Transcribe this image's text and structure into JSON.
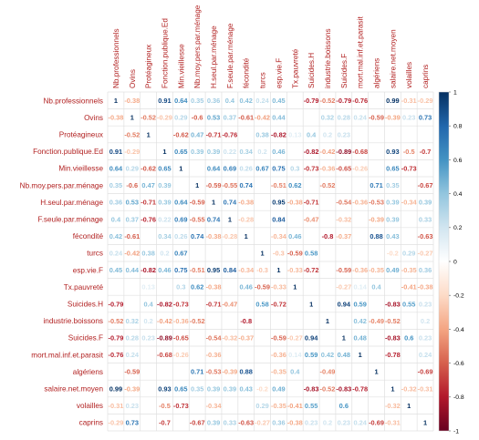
{
  "chart_data": {
    "type": "heatmap",
    "title": "",
    "variables": [
      "Nb.professionnels",
      "Ovins",
      "Protéagineux",
      "Fonction.publique.Ed",
      "Min.vieillesse",
      "Nb.moy.pers.par.ménage",
      "H.seul.par.ménage",
      "F.seule.par.ménage",
      "fécondité",
      "turcs",
      "esp.vie.F",
      "Tx.pauvreté",
      "Suicides.H",
      "industrie.boissons",
      "Suicides.F",
      "mort.mal.inf.et.parasit",
      "algériens",
      "salaire.net.moyen",
      "volailles",
      "caprins"
    ],
    "matrix": [
      [
        1,
        -0.38,
        null,
        0.91,
        0.64,
        0.35,
        0.36,
        0.4,
        0.42,
        0.24,
        0.45,
        null,
        -0.79,
        -0.52,
        -0.79,
        -0.76,
        null,
        0.99,
        -0.31,
        -0.29
      ],
      [
        -0.38,
        1,
        -0.52,
        -0.29,
        0.29,
        -0.6,
        0.53,
        0.37,
        -0.61,
        -0.42,
        0.44,
        null,
        null,
        0.32,
        0.28,
        0.24,
        -0.59,
        -0.39,
        0.23,
        0.73
      ],
      [
        null,
        -0.52,
        1,
        null,
        -0.62,
        0.47,
        -0.71,
        -0.76,
        null,
        0.38,
        -0.82,
        0.13,
        0.4,
        0.2,
        0.23,
        null,
        null,
        null,
        null,
        null
      ],
      [
        0.91,
        -0.29,
        null,
        1,
        0.65,
        0.39,
        0.39,
        0.22,
        0.34,
        0.2,
        0.46,
        null,
        -0.82,
        -0.42,
        -0.89,
        -0.68,
        null,
        0.93,
        -0.5,
        -0.7
      ],
      [
        0.64,
        0.29,
        -0.62,
        0.65,
        1,
        null,
        0.64,
        0.69,
        0.26,
        0.67,
        0.75,
        0.3,
        -0.73,
        -0.36,
        -0.65,
        -0.26,
        null,
        0.65,
        -0.73,
        null
      ],
      [
        0.35,
        -0.6,
        0.47,
        0.39,
        null,
        1,
        -0.59,
        -0.55,
        0.74,
        null,
        -0.51,
        0.62,
        null,
        -0.52,
        null,
        null,
        0.71,
        0.35,
        null,
        -0.67
      ],
      [
        0.36,
        0.53,
        -0.71,
        0.39,
        0.64,
        -0.59,
        1,
        0.74,
        -0.38,
        null,
        0.95,
        -0.38,
        -0.71,
        null,
        -0.54,
        -0.36,
        -0.53,
        0.39,
        -0.34,
        0.39
      ],
      [
        0.4,
        0.37,
        -0.76,
        0.22,
        0.69,
        -0.55,
        0.74,
        1,
        -0.28,
        null,
        0.84,
        null,
        -0.47,
        null,
        -0.32,
        null,
        -0.39,
        0.39,
        null,
        0.33
      ],
      [
        0.42,
        -0.61,
        null,
        0.34,
        0.26,
        0.74,
        -0.38,
        -0.28,
        1,
        null,
        -0.34,
        0.46,
        null,
        -0.8,
        -0.37,
        null,
        0.88,
        0.43,
        null,
        -0.63
      ],
      [
        0.24,
        -0.42,
        0.38,
        0.2,
        0.67,
        null,
        null,
        null,
        null,
        1,
        -0.3,
        -0.59,
        0.58,
        null,
        null,
        null,
        null,
        -0.2,
        0.29,
        -0.27
      ],
      [
        0.45,
        0.44,
        -0.82,
        0.46,
        0.75,
        -0.51,
        0.95,
        0.84,
        -0.34,
        -0.3,
        1,
        -0.33,
        -0.72,
        null,
        -0.59,
        -0.36,
        -0.35,
        0.49,
        -0.35,
        0.36
      ],
      [
        null,
        null,
        0.13,
        null,
        0.3,
        0.62,
        -0.38,
        null,
        0.46,
        -0.59,
        -0.33,
        1,
        null,
        null,
        -0.27,
        0.14,
        0.4,
        null,
        -0.41,
        -0.38
      ],
      [
        -0.79,
        null,
        0.4,
        -0.82,
        -0.73,
        null,
        -0.71,
        -0.47,
        null,
        0.58,
        -0.72,
        null,
        1,
        null,
        0.94,
        0.59,
        null,
        -0.83,
        0.55,
        0.23
      ],
      [
        -0.52,
        0.32,
        0.2,
        -0.42,
        -0.36,
        -0.52,
        null,
        null,
        -0.8,
        null,
        null,
        null,
        null,
        1,
        null,
        0.42,
        -0.49,
        -0.52,
        null,
        0.2
      ],
      [
        -0.79,
        0.28,
        0.23,
        -0.89,
        -0.65,
        null,
        -0.54,
        -0.32,
        -0.37,
        null,
        -0.59,
        -0.27,
        0.94,
        null,
        1,
        0.48,
        null,
        -0.83,
        0.6,
        0.23
      ],
      [
        -0.76,
        0.24,
        null,
        -0.68,
        -0.26,
        null,
        -0.36,
        null,
        null,
        null,
        -0.36,
        0.14,
        0.59,
        0.42,
        0.48,
        1,
        null,
        -0.78,
        null,
        0.24
      ],
      [
        null,
        -0.59,
        null,
        null,
        null,
        0.71,
        -0.53,
        -0.39,
        0.88,
        null,
        -0.35,
        0.4,
        null,
        -0.49,
        null,
        null,
        1,
        null,
        null,
        -0.69
      ],
      [
        0.99,
        -0.39,
        null,
        0.93,
        0.65,
        0.35,
        0.39,
        0.39,
        0.43,
        -0.2,
        0.49,
        null,
        -0.83,
        -0.52,
        -0.83,
        -0.78,
        null,
        1,
        -0.32,
        -0.31
      ],
      [
        -0.31,
        0.23,
        null,
        -0.5,
        -0.73,
        null,
        -0.34,
        null,
        null,
        0.29,
        -0.35,
        -0.41,
        0.55,
        null,
        0.6,
        null,
        null,
        -0.32,
        1,
        null
      ],
      [
        -0.29,
        0.73,
        null,
        -0.7,
        null,
        -0.67,
        0.39,
        0.33,
        -0.63,
        -0.27,
        0.36,
        -0.38,
        0.23,
        0.2,
        0.23,
        0.24,
        -0.69,
        -0.31,
        null,
        1
      ]
    ],
    "color_scale": {
      "min": -1,
      "max": 1,
      "ticks": [
        1,
        0.8,
        0.6,
        0.4,
        0.2,
        0,
        -0.2,
        -0.4,
        -0.6,
        -0.8,
        -1
      ],
      "stops": [
        "#67001f",
        "#b2182b",
        "#d6604d",
        "#f4a582",
        "#fddbc7",
        "#ffffff",
        "#d1e5f0",
        "#92c5de",
        "#4393c3",
        "#2166ac",
        "#053061"
      ]
    },
    "label_color": "#b22222",
    "grid": true,
    "legend": "right"
  }
}
